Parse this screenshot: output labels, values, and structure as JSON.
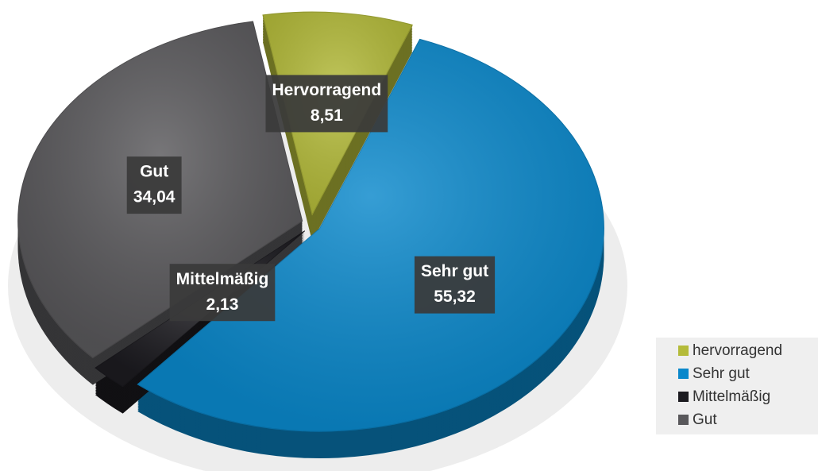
{
  "chart_data": {
    "type": "pie",
    "categories": [
      "hervorragend",
      "Sehr gut",
      "Mittelmäßig",
      "Gut"
    ],
    "data_label_names": [
      "Hervorragend",
      "Sehr gut",
      "Mittelmäßig",
      "Gut"
    ],
    "values": [
      8.51,
      55.32,
      2.13,
      34.04
    ],
    "value_labels": [
      "8,51",
      "55,32",
      "2,13",
      "34,04"
    ],
    "colors": [
      "#b4bb3a",
      "#0a88cb",
      "#1c1b20",
      "#59585b"
    ],
    "legend": "right"
  }
}
